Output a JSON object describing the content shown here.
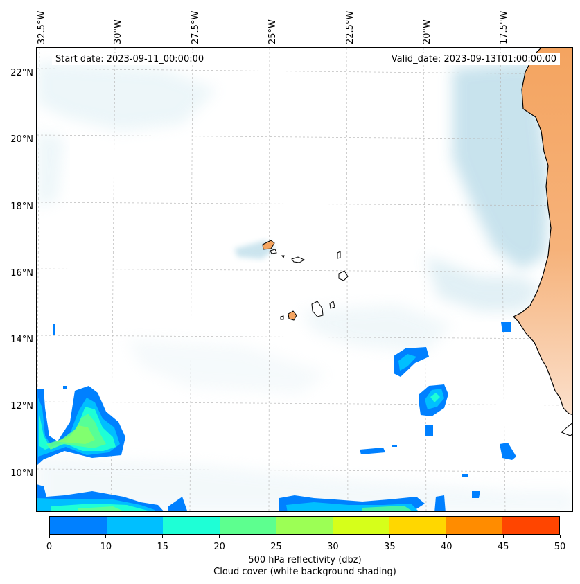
{
  "map": {
    "start_date_text": "Start date: 2023-09-11_00:00:00",
    "valid_date_text": "Valid_date: 2023-09-13T01:00:00.00",
    "lon_ticks": [
      "32.5°W",
      "30°W",
      "27.5°W",
      "25°W",
      "22.5°W",
      "20°W",
      "17.5°W"
    ],
    "lat_ticks": [
      "22°N",
      "20°N",
      "18°N",
      "16°N",
      "14°N",
      "12°N",
      "10°N"
    ],
    "colors": {
      "land": "#f4a460",
      "cloud": "#a9d3e3",
      "coastline": "#000000",
      "gridline": "#b0b0b0"
    }
  },
  "colorbar": {
    "ticks": [
      "0",
      "10",
      "15",
      "20",
      "25",
      "30",
      "35",
      "40",
      "45",
      "50"
    ],
    "colors": [
      "#0080ff",
      "#00bfff",
      "#1effd6",
      "#5dff8f",
      "#9cff55",
      "#d6ff1a",
      "#ffd700",
      "#ff8c00",
      "#ff4500"
    ],
    "label_line1": "500 hPa reflectivity (dbz)",
    "label_line2": "Cloud cover (white background shading)"
  }
}
